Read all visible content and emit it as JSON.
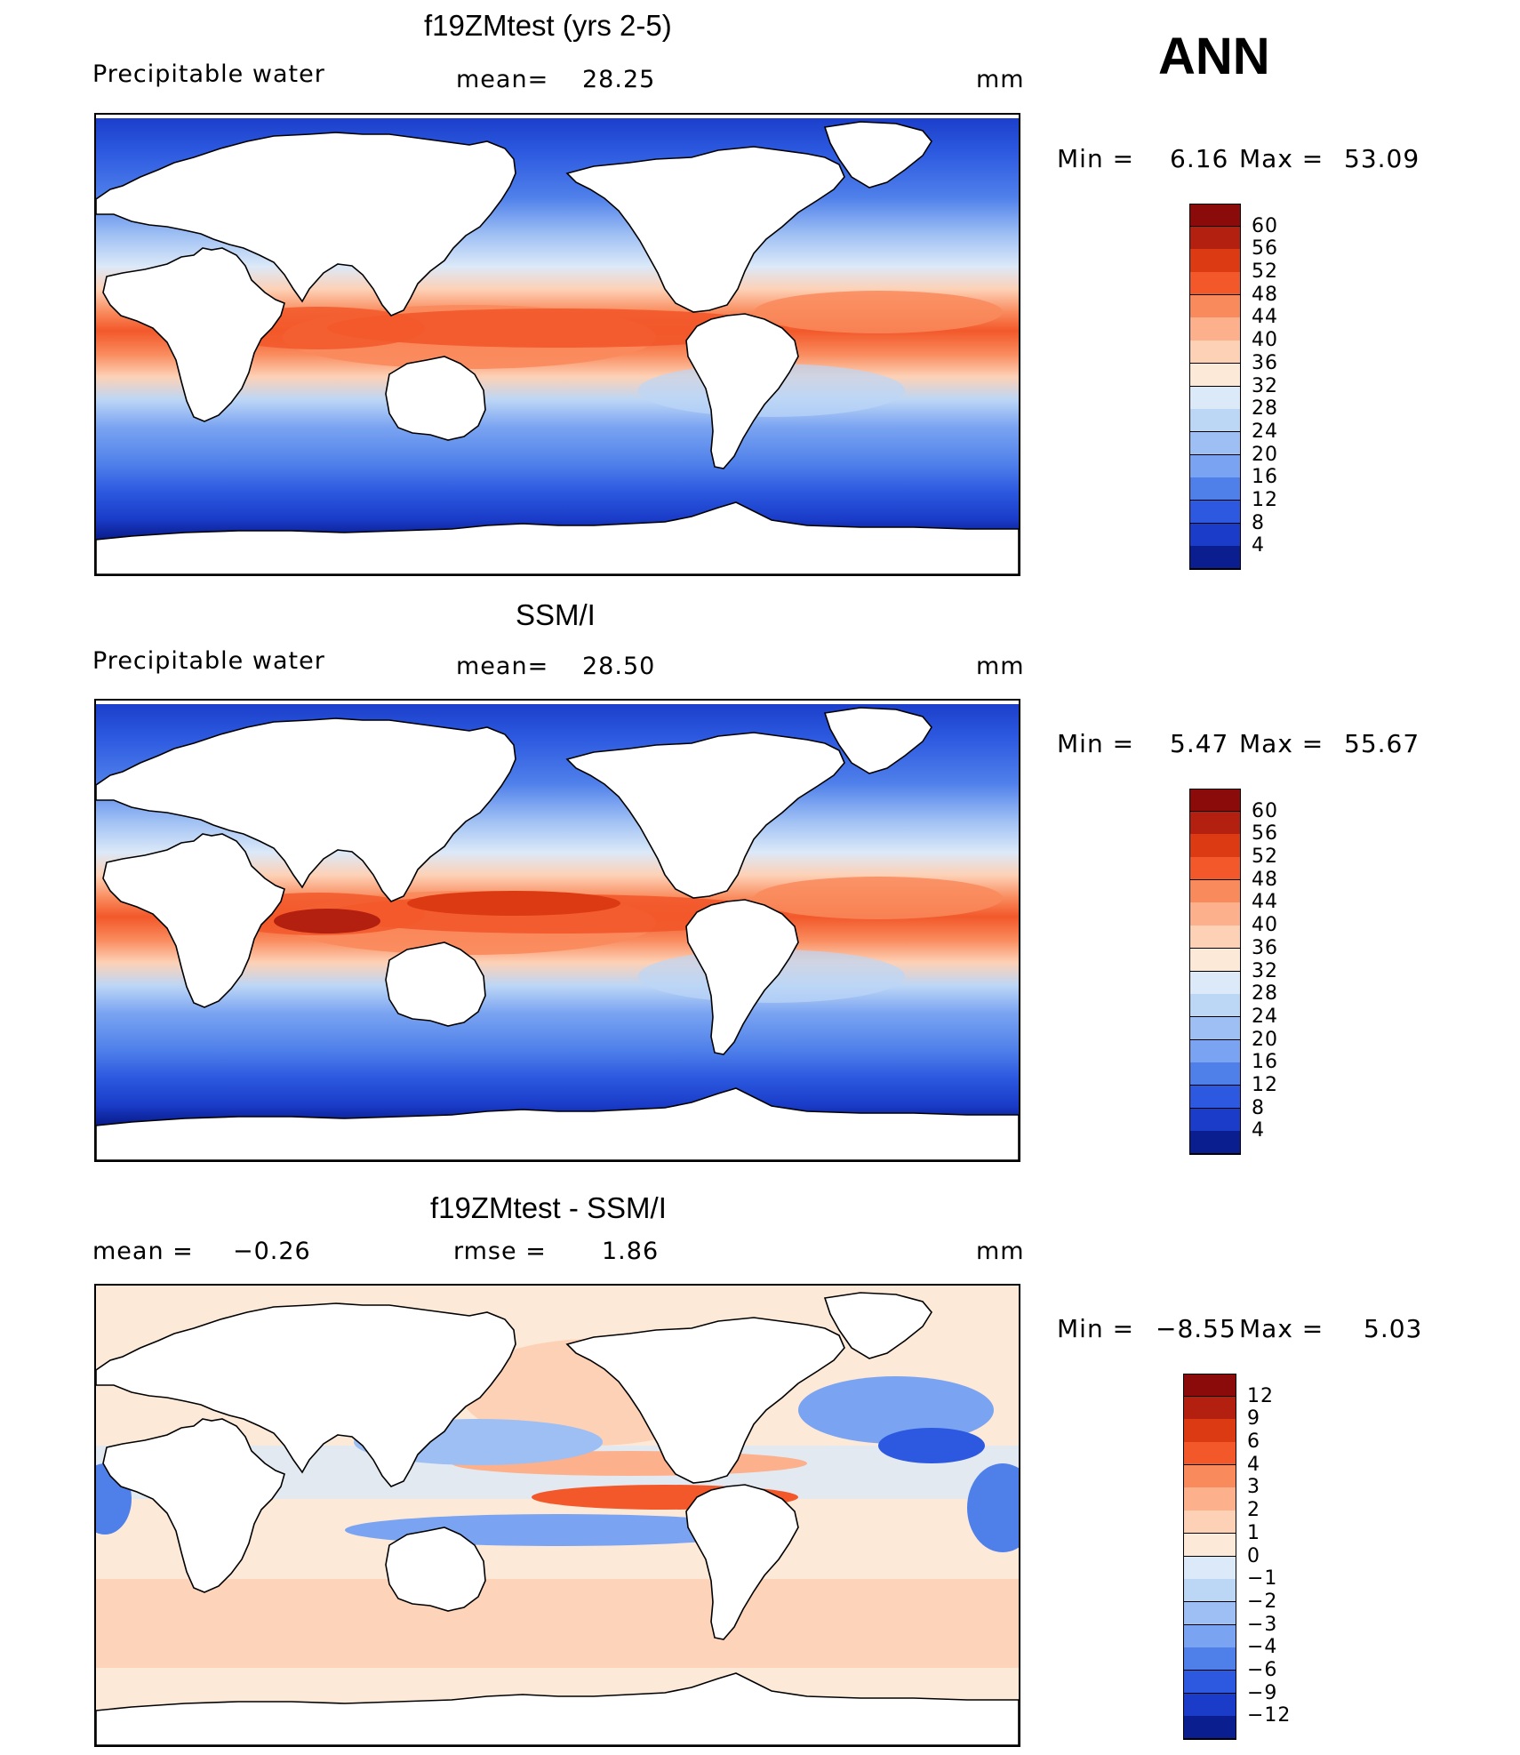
{
  "season": "ANN",
  "panels": [
    {
      "title": "f19ZMtest (yrs 2-5)",
      "field": "Precipitable water",
      "stat1_label": "mean=",
      "stat1_value": "28.25",
      "units": "mm",
      "min_label": "Min =",
      "min_value": "6.16",
      "max_label": "Max =",
      "max_value": "53.09",
      "scale": "abs"
    },
    {
      "title": "SSM/I",
      "field": "Precipitable water",
      "stat1_label": "mean=",
      "stat1_value": "28.50",
      "units": "mm",
      "min_label": "Min =",
      "min_value": "5.47",
      "max_label": "Max =",
      "max_value": "55.67",
      "scale": "abs"
    },
    {
      "title": "f19ZMtest - SSM/I",
      "stat1_label": "mean =",
      "stat1_value": "−0.26",
      "stat2_label": "rmse =",
      "stat2_value": "1.86",
      "units": "mm",
      "min_label": "Min =",
      "min_value": "−8.55",
      "max_label": "Max =",
      "max_value": "5.03",
      "scale": "diff"
    }
  ],
  "colorbars": {
    "abs": {
      "labels": [
        "60",
        "56",
        "52",
        "48",
        "44",
        "40",
        "36",
        "32",
        "28",
        "24",
        "20",
        "16",
        "12",
        "8",
        "4"
      ],
      "colors": [
        "#8b0a0a",
        "#b32010",
        "#dc3a12",
        "#f2582a",
        "#f98a5c",
        "#fcb08c",
        "#fdd1b6",
        "#fde9d8",
        "#dbe9f8",
        "#bcd6f6",
        "#9ebff4",
        "#7aa4f1",
        "#4f80ea",
        "#2c59e0",
        "#1a3cc8",
        "#0a1e8f"
      ]
    },
    "diff": {
      "labels": [
        "12",
        "9",
        "6",
        "4",
        "3",
        "2",
        "1",
        "0",
        "−1",
        "−2",
        "−3",
        "−4",
        "−6",
        "−9",
        "−12"
      ],
      "colors": [
        "#8b0a0a",
        "#b32010",
        "#dc3a12",
        "#f2582a",
        "#f98a5c",
        "#fcb08c",
        "#fdd1b6",
        "#fde9d8",
        "#dbe9f8",
        "#bcd6f6",
        "#9ebff4",
        "#7aa4f1",
        "#4f80ea",
        "#2c59e0",
        "#1a3cc8",
        "#0a1e8f"
      ]
    }
  }
}
